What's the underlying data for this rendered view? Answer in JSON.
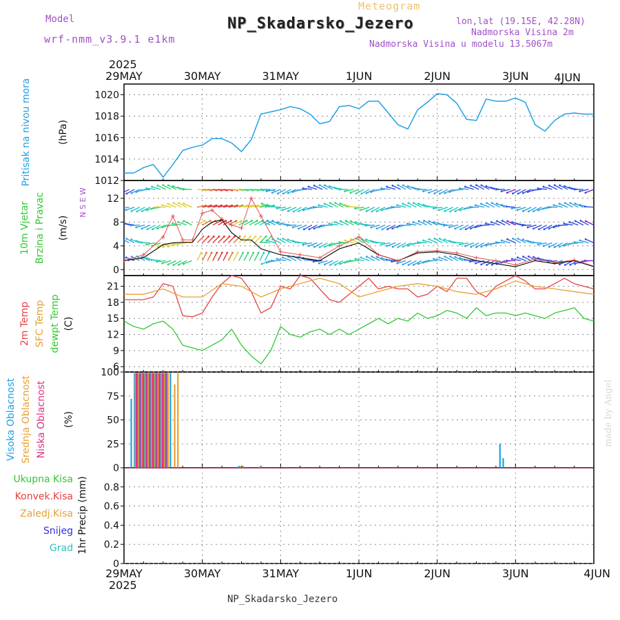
{
  "header": {
    "model_label": "Model",
    "model_name": "wrf-nmm_v3.9.1 e1km",
    "meteogram_label": "Meteogram",
    "station": "NP_Skadarsko_Jezero",
    "lonlat": "lon,lat (19.15E, 42.28N)",
    "altitude": "Nadmorska Visina 2m",
    "model_altitude": "Nadmorska Visina u modelu 13.5067m"
  },
  "footer": {
    "station": "NP_Skadarsko_Jezero",
    "signature": "made by Angel"
  },
  "colors": {
    "pressure": "#1ea0e6",
    "temp2m": "#e84040",
    "sfc_temp": "#e8a030",
    "dewpt": "#30c830",
    "high_cloud": "#1ea0e6",
    "mid_cloud": "#e8a030",
    "low_cloud": "#e03080",
    "purple_label": "#a050c8"
  },
  "chart_data": {
    "type": "meteogram",
    "x_axis": {
      "year": "2025",
      "tick_labels": [
        "29MAY",
        "30MAY",
        "31MAY",
        "1JUN",
        "2JUN",
        "3JUN",
        "4JUN"
      ],
      "range_hours": [
        0,
        144
      ]
    },
    "panels": [
      {
        "id": "pressure",
        "type": "line",
        "ylabel_lines": [
          "Pritisak na nivou mora"
        ],
        "unit": "(hPa)",
        "ylim": [
          1012,
          1021
        ],
        "yticks": [
          1012,
          1014,
          1016,
          1018,
          1020
        ],
        "series": [
          {
            "x": [
              0,
              3,
              6,
              9,
              12,
              15,
              18,
              21,
              24,
              27,
              30,
              33,
              36,
              39,
              42,
              45,
              48,
              51,
              54,
              57,
              60,
              63,
              66,
              69,
              72,
              75,
              78,
              81,
              84,
              87,
              90,
              93,
              96,
              99,
              102,
              105,
              108,
              111,
              114,
              117,
              120,
              123,
              126,
              129,
              132,
              135,
              138,
              141,
              144
            ],
            "y": [
              1012.7,
              1012.7,
              1013.2,
              1013.5,
              1012.3,
              1013.5,
              1014.8,
              1015.1,
              1015.3,
              1015.9,
              1015.9,
              1015.5,
              1014.7,
              1015.8,
              1018.2,
              1018.4,
              1018.6,
              1018.9,
              1018.7,
              1018.2,
              1017.3,
              1017.5,
              1018.9,
              1019.0,
              1018.7,
              1019.4,
              1019.4,
              1018.3,
              1017.2,
              1016.8,
              1018.6,
              1019.3,
              1020.1,
              1020.0,
              1019.2,
              1017.7,
              1017.6,
              1019.6,
              1019.4,
              1019.4,
              1019.7,
              1019.3,
              1017.2,
              1016.6,
              1017.6,
              1018.2,
              1018.3,
              1018.2,
              1018.2
            ]
          }
        ]
      },
      {
        "id": "wind",
        "type": "wind_barbs",
        "ylabel_lines": [
          "10m Vjetar",
          "Brzina i Pravac"
        ],
        "unit": "(m/s)",
        "compass_label": "N S E W",
        "ylim": [
          -1,
          15
        ],
        "yticks": [
          0,
          4,
          8,
          12
        ],
        "levels_y": [
          1.5,
          4.5,
          7.5,
          10.5,
          13.5
        ],
        "speed_series": {
          "x": [
            0,
            6,
            12,
            15,
            18,
            21,
            24,
            27,
            30,
            33,
            36,
            39,
            42,
            48,
            54,
            60,
            66,
            72,
            78,
            84,
            90,
            96,
            102,
            108,
            114,
            120,
            126,
            132,
            138,
            144
          ],
          "y": [
            1.5,
            2.0,
            4.2,
            4.5,
            4.6,
            4.6,
            6.8,
            8.0,
            8.4,
            6.2,
            5.0,
            5.0,
            3.5,
            2.5,
            2.0,
            1.5,
            3.5,
            4.5,
            2.5,
            1.5,
            2.8,
            3.0,
            2.5,
            1.5,
            1.0,
            0.5,
            1.5,
            1.0,
            1.5,
            0.5
          ]
        },
        "gust_series": {
          "x": [
            0,
            6,
            12,
            15,
            18,
            21,
            24,
            27,
            30,
            33,
            36,
            39,
            42,
            48,
            54,
            60,
            66,
            72,
            78,
            84,
            90,
            96,
            102,
            108,
            114,
            120,
            126,
            132,
            138,
            144
          ],
          "y": [
            1.5,
            2.5,
            5.5,
            9.0,
            5.0,
            5.0,
            9.5,
            10.0,
            8.5,
            7.5,
            7.0,
            12.0,
            9.0,
            3.0,
            2.5,
            2.0,
            4.0,
            5.5,
            2.5,
            1.5,
            3.0,
            3.2,
            2.8,
            2.0,
            1.5,
            0.8,
            1.8,
            1.2,
            1.6,
            0.6
          ]
        }
      },
      {
        "id": "temperature",
        "type": "line",
        "ylabel_lines": [
          "2m Temp",
          "SFC Temp",
          "dewpt Temp"
        ],
        "unit": "(C)",
        "ylim": [
          5,
          23
        ],
        "yticks": [
          6,
          9,
          12,
          15,
          18,
          21
        ],
        "series": [
          {
            "name": "2m Temp",
            "x": [
              0,
              3,
              6,
              9,
              12,
              15,
              18,
              21,
              24,
              27,
              30,
              33,
              36,
              39,
              42,
              45,
              48,
              51,
              54,
              57,
              60,
              63,
              66,
              69,
              72,
              75,
              78,
              81,
              84,
              87,
              90,
              93,
              96,
              99,
              102,
              105,
              108,
              111,
              114,
              117,
              120,
              123,
              126,
              129,
              132,
              135,
              138,
              141,
              144
            ],
            "y": [
              18.5,
              18.5,
              18.5,
              19.0,
              21.5,
              21.0,
              15.5,
              15.3,
              16.0,
              19.0,
              21.5,
              23.0,
              22.5,
              20.0,
              16.0,
              17.0,
              21.0,
              20.5,
              23.0,
              22.5,
              20.5,
              18.5,
              18.0,
              19.5,
              21.0,
              22.5,
              20.5,
              21.0,
              20.5,
              20.5,
              19.0,
              19.5,
              21.0,
              20.0,
              22.5,
              22.5,
              20.0,
              19.0,
              21.0,
              22.0,
              23.0,
              22.0,
              20.5,
              20.5,
              21.5,
              22.5,
              21.5,
              21.0,
              20.5
            ]
          },
          {
            "name": "SFC Temp",
            "x": [
              0,
              6,
              12,
              18,
              24,
              30,
              36,
              42,
              48,
              54,
              60,
              66,
              72,
              78,
              84,
              90,
              96,
              102,
              108,
              114,
              120,
              126,
              132,
              138,
              144
            ],
            "y": [
              19.5,
              19.5,
              20.5,
              19.0,
              19.0,
              21.5,
              21.0,
              19.0,
              20.5,
              21.5,
              22.5,
              21.5,
              19.0,
              20.0,
              21.0,
              21.5,
              21.0,
              20.0,
              19.5,
              20.5,
              22.0,
              21.0,
              20.5,
              20.0,
              19.5
            ]
          },
          {
            "name": "dewpt Temp",
            "x": [
              0,
              3,
              6,
              9,
              12,
              15,
              18,
              21,
              24,
              27,
              30,
              33,
              36,
              39,
              42,
              45,
              48,
              51,
              54,
              57,
              60,
              63,
              66,
              69,
              72,
              75,
              78,
              81,
              84,
              87,
              90,
              93,
              96,
              99,
              102,
              105,
              108,
              111,
              114,
              117,
              120,
              123,
              126,
              129,
              132,
              135,
              138,
              141,
              144
            ],
            "y": [
              14.5,
              13.5,
              13.0,
              14.0,
              14.5,
              13.0,
              10.0,
              9.5,
              9.0,
              10.0,
              11.0,
              13.0,
              10.0,
              8.0,
              6.5,
              9.0,
              13.5,
              12.0,
              11.5,
              12.5,
              13.0,
              12.0,
              13.0,
              12.0,
              13.0,
              14.0,
              15.0,
              14.0,
              15.0,
              14.5,
              16.0,
              15.0,
              15.5,
              16.5,
              16.0,
              15.0,
              17.0,
              15.5,
              16.0,
              16.0,
              15.5,
              16.0,
              15.5,
              15.0,
              16.0,
              16.5,
              17.0,
              15.0,
              14.5
            ]
          }
        ]
      },
      {
        "id": "clouds",
        "type": "bar",
        "ylabel_lines": [
          "Visoka Oblacnost",
          "Srednja Oblacnost",
          "Niska Oblacnost"
        ],
        "unit": "(%)",
        "ylim": [
          0,
          100
        ],
        "yticks": [
          0,
          25,
          50,
          75,
          100
        ],
        "series": [
          {
            "name": "Visoka Oblacnost",
            "x": [
              2.0,
              3.0,
              4.0,
              5.0,
              6.0,
              7.0,
              8.0,
              9.0,
              10.0,
              11.0,
              12.0,
              13.0,
              14.0,
              35.0,
              36.0,
              41.0,
              42.0,
              115.0,
              116.0
            ],
            "y": [
              72,
              99,
              99,
              99,
              99,
              99,
              99,
              99,
              99,
              99,
              99,
              99,
              99,
              2,
              2,
              1,
              1,
              25,
              10
            ]
          },
          {
            "name": "Srednja Oblacnost",
            "x": [
              3.3,
              4.3,
              5.3,
              6.3,
              7.3,
              8.3,
              9.3,
              10.3,
              11.3,
              12.3,
              13.3,
              15.3,
              16.3,
              35.3,
              36.3,
              41.3
            ],
            "y": [
              99,
              99,
              99,
              99,
              99,
              99,
              99,
              99,
              99,
              99,
              99,
              87,
              99,
              2,
              2,
              1
            ]
          },
          {
            "name": "Niska Oblacnost",
            "x": [
              3.6,
              4.6,
              5.6,
              6.6,
              7.6,
              8.6,
              9.6,
              10.6,
              11.6,
              12.6
            ],
            "y": [
              99,
              99,
              99,
              99,
              99,
              99,
              99,
              99,
              99,
              99
            ]
          }
        ]
      },
      {
        "id": "precip",
        "type": "bar",
        "ylabel_lines": [
          "Ukupna Kisa",
          "Konvek.Kisa",
          "Zaledj.Kisa",
          "Snijeg",
          "Grad"
        ],
        "ylabel_right": "1hr Precip (mm)",
        "ylim": [
          0,
          1
        ],
        "yticks": [
          0,
          0.2,
          0.4,
          0.6,
          0.8
        ],
        "series": []
      }
    ]
  }
}
